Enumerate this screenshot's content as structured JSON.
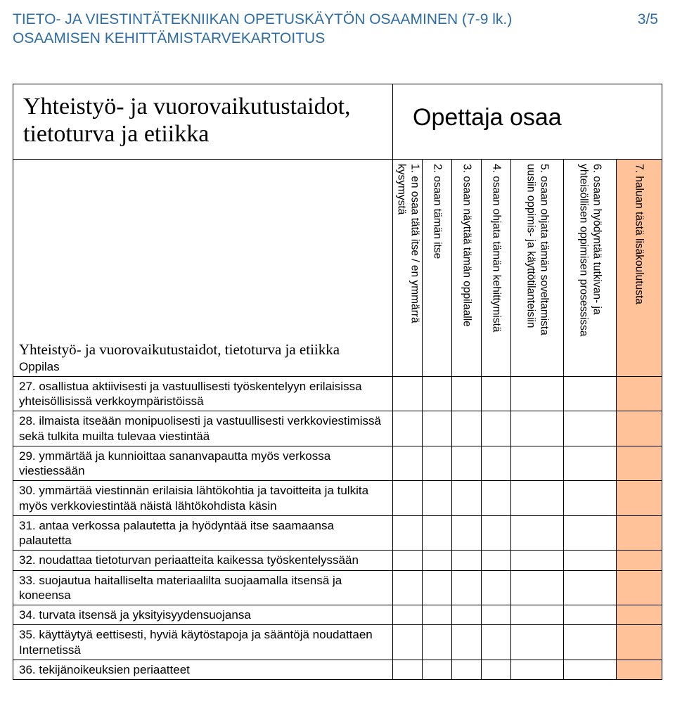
{
  "page_header": {
    "line1": "TIETO- JA VIESTINTÄTEKNIIKAN OPETUSKÄYTÖN OSAAMINEN (7-9 lk.)",
    "line2": "OSAAMISEN KEHITTÄMISTARVEKARTOITUS",
    "page_num": "3/5",
    "color": "#2e6ca4"
  },
  "section_title": "Yhteistyö- ja vuorovaikutus­taidot, tietoturva ja etiikka",
  "teacher_label": "Opettaja osaa",
  "subsection_title": "Yhteistyö- ja vuorovaikutustaidot, tietoturva ja etiikka",
  "oppilas_label": "Oppilas",
  "columns": {
    "c1": "1. en osaa tätä itse / en ymmärrä kysymystä",
    "c2": "2. osaan tämän itse",
    "c3": "3. osaan näyttää tämän oppilaalle",
    "c4": "4. osaan ohjata tämän kehittymistä",
    "c5_l1": "5. osaan ohjata tämän soveltamista",
    "c5_l2": "uusiin oppimis- ja käyttötilanteisiin",
    "c6_l1": "6. osaan hyödyntää tutkivan- ja",
    "c6_l2": "yhteisöllisen oppimisen prosessissa",
    "c7": "7. haluan tästä lisäkoulutusta"
  },
  "col7_bg": "#ffc299",
  "rows": [
    "27. osallistua aktiivisesti ja vastuullisesti työskentelyyn erilaisissa yhteisöllisissä verkkoympäristöissä",
    "28. ilmaista itseään monipuolisesti ja vastuullisesti verkkoviestimissä sekä tulkita muilta tulevaa viestintää",
    "29. ymmärtää ja kunnioittaa sananvapautta myös verkossa viestiessään",
    "30. ymmärtää viestinnän erilaisia lähtökohtia ja tavoitteita ja tulkita myös verkkoviestintää näistä lähtökohdista käsin",
    "31. antaa verkossa palautetta ja hyödyntää itse saamaansa palautetta",
    "32. noudattaa tietoturvan periaatteita kaikessa työskentelyssään",
    "33. suojautua haitalliselta materiaalilta suojaamalla itsensä ja koneensa",
    "34. turvata itsensä ja yksityisyydensuojansa",
    "35. käyttäytyä eettisesti, hyviä käytöstapoja ja sääntöjä noudattaen Internetissä",
    "36. tekijänoikeuksien periaatteet"
  ]
}
